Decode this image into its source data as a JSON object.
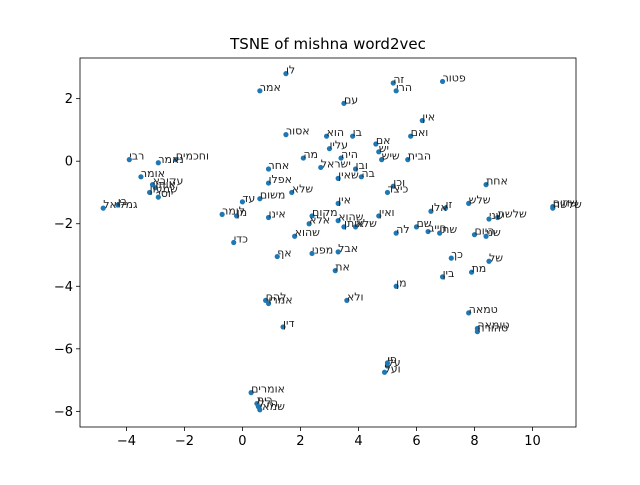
{
  "chart_data": {
    "type": "scatter",
    "title": "TSNE of mishna word2vec",
    "xlabel": "",
    "ylabel": "",
    "xlim": [
      -5.6,
      11.5
    ],
    "ylim": [
      -8.5,
      3.3
    ],
    "xticks": [
      -4,
      -2,
      0,
      2,
      4,
      6,
      8,
      10
    ],
    "yticks": [
      -8,
      -6,
      -4,
      -2,
      0,
      2
    ],
    "grid": false,
    "point_color": "#1f77b4",
    "points": [
      {
        "x": 1.5,
        "y": 2.8,
        "label": "לו"
      },
      {
        "x": 0.6,
        "y": 2.25,
        "label": "אמר"
      },
      {
        "x": 5.2,
        "y": 2.5,
        "label": "זה"
      },
      {
        "x": 5.3,
        "y": 2.25,
        "label": "הרי"
      },
      {
        "x": 6.9,
        "y": 2.55,
        "label": "פטור"
      },
      {
        "x": 3.5,
        "y": 1.85,
        "label": "עם"
      },
      {
        "x": 6.2,
        "y": 1.3,
        "label": "אין"
      },
      {
        "x": 1.5,
        "y": 0.85,
        "label": "אסור"
      },
      {
        "x": 2.9,
        "y": 0.8,
        "label": "הוא"
      },
      {
        "x": 3.8,
        "y": 0.8,
        "label": "בו"
      },
      {
        "x": 5.8,
        "y": 0.8,
        "label": "ואם"
      },
      {
        "x": 4.6,
        "y": 0.55,
        "label": "אם"
      },
      {
        "x": 3.0,
        "y": 0.4,
        "label": "עליו"
      },
      {
        "x": 2.1,
        "y": 0.1,
        "label": "מה"
      },
      {
        "x": 3.4,
        "y": 0.1,
        "label": "היה"
      },
      {
        "x": 4.7,
        "y": 0.3,
        "label": "יש"
      },
      {
        "x": 4.8,
        "y": 0.05,
        "label": "שיש"
      },
      {
        "x": 5.7,
        "y": 0.05,
        "label": "הבית"
      },
      {
        "x": -3.9,
        "y": 0.05,
        "label": "רבי"
      },
      {
        "x": -2.9,
        "y": -0.05,
        "label": "נאמר"
      },
      {
        "x": -2.3,
        "y": 0.05,
        "label": "וחכמים"
      },
      {
        "x": 0.9,
        "y": -0.25,
        "label": "אחר"
      },
      {
        "x": 2.7,
        "y": -0.2,
        "label": "ישראל"
      },
      {
        "x": 3.9,
        "y": -0.25,
        "label": "ובן"
      },
      {
        "x": 3.3,
        "y": -0.55,
        "label": "שאין"
      },
      {
        "x": 4.1,
        "y": -0.5,
        "label": "בה"
      },
      {
        "x": 0.9,
        "y": -0.7,
        "label": "אפלו"
      },
      {
        "x": -3.5,
        "y": -0.5,
        "label": "אומר"
      },
      {
        "x": -3.1,
        "y": -0.75,
        "label": "עקיבא"
      },
      {
        "x": -3.0,
        "y": -0.85,
        "label": "אותו"
      },
      {
        "x": -2.9,
        "y": -1.15,
        "label": "יוסי"
      },
      {
        "x": -3.2,
        "y": -1.0,
        "label": "שמעון"
      },
      {
        "x": -4.8,
        "y": -1.5,
        "label": "גמליאל"
      },
      {
        "x": -4.3,
        "y": -1.4,
        "label": "בן"
      },
      {
        "x": 0.6,
        "y": -1.2,
        "label": "משום"
      },
      {
        "x": 1.7,
        "y": -1.0,
        "label": "שלא"
      },
      {
        "x": 5.0,
        "y": -1.0,
        "label": "כיצד"
      },
      {
        "x": 5.2,
        "y": -0.8,
        "label": "וכן"
      },
      {
        "x": 8.4,
        "y": -0.75,
        "label": "אחת"
      },
      {
        "x": 10.7,
        "y": -1.45,
        "label": "שתים"
      },
      {
        "x": 10.7,
        "y": -1.5,
        "label": "שלשה"
      },
      {
        "x": 0.0,
        "y": -1.3,
        "label": "עד"
      },
      {
        "x": -0.7,
        "y": -1.7,
        "label": "לומר"
      },
      {
        "x": -0.2,
        "y": -1.75,
        "label": "מן"
      },
      {
        "x": 0.9,
        "y": -1.8,
        "label": "אינו"
      },
      {
        "x": 2.4,
        "y": -1.75,
        "label": "מקום"
      },
      {
        "x": 3.3,
        "y": -1.35,
        "label": "אין"
      },
      {
        "x": 3.3,
        "y": -1.9,
        "label": "שהוא"
      },
      {
        "x": 3.5,
        "y": -2.1,
        "label": "אותן"
      },
      {
        "x": 3.9,
        "y": -2.1,
        "label": "שלא"
      },
      {
        "x": 4.7,
        "y": -1.75,
        "label": "ואין"
      },
      {
        "x": 5.3,
        "y": -2.3,
        "label": "לה"
      },
      {
        "x": 6.0,
        "y": -2.1,
        "label": "שם"
      },
      {
        "x": 6.5,
        "y": -1.6,
        "label": "אלו"
      },
      {
        "x": 7.0,
        "y": -1.5,
        "label": "זו"
      },
      {
        "x": 6.4,
        "y": -2.25,
        "label": "חייב"
      },
      {
        "x": 6.8,
        "y": -2.3,
        "label": "שתי"
      },
      {
        "x": 7.8,
        "y": -1.35,
        "label": "שלש"
      },
      {
        "x": 8.5,
        "y": -1.85,
        "label": "שני"
      },
      {
        "x": 8.8,
        "y": -1.8,
        "label": "שלשת"
      },
      {
        "x": 8.0,
        "y": -2.35,
        "label": "היום"
      },
      {
        "x": 8.4,
        "y": -2.4,
        "label": "שני"
      },
      {
        "x": -0.3,
        "y": -2.6,
        "label": "כדי"
      },
      {
        "x": 1.8,
        "y": -2.4,
        "label": "שהוא"
      },
      {
        "x": 2.3,
        "y": -2.0,
        "label": "אלא"
      },
      {
        "x": 1.2,
        "y": -3.05,
        "label": "אף"
      },
      {
        "x": 2.4,
        "y": -2.95,
        "label": "מפני"
      },
      {
        "x": 3.3,
        "y": -2.9,
        "label": "אבל"
      },
      {
        "x": 7.2,
        "y": -3.1,
        "label": "כך"
      },
      {
        "x": 8.5,
        "y": -3.2,
        "label": "של"
      },
      {
        "x": 3.2,
        "y": -3.5,
        "label": "את"
      },
      {
        "x": 6.9,
        "y": -3.7,
        "label": "בין"
      },
      {
        "x": 7.9,
        "y": -3.55,
        "label": "מת"
      },
      {
        "x": 5.3,
        "y": -4.0,
        "label": "מן"
      },
      {
        "x": 0.8,
        "y": -4.45,
        "label": "להם"
      },
      {
        "x": 0.9,
        "y": -4.55,
        "label": "אמרו"
      },
      {
        "x": 3.6,
        "y": -4.45,
        "label": "ולא"
      },
      {
        "x": 1.4,
        "y": -5.3,
        "label": "דין"
      },
      {
        "x": 7.8,
        "y": -4.85,
        "label": "טמאה"
      },
      {
        "x": 8.1,
        "y": -5.35,
        "label": "טומאה"
      },
      {
        "x": 8.1,
        "y": -5.45,
        "label": "טהורה"
      },
      {
        "x": 5.0,
        "y": -6.45,
        "label": "פי"
      },
      {
        "x": 5.0,
        "y": -6.55,
        "label": "על"
      },
      {
        "x": 4.9,
        "y": -6.75,
        "label": "ועל"
      },
      {
        "x": 0.3,
        "y": -7.4,
        "label": "אומרים"
      },
      {
        "x": 0.5,
        "y": -7.75,
        "label": "בית"
      },
      {
        "x": 0.55,
        "y": -7.85,
        "label": "הלל"
      },
      {
        "x": 0.6,
        "y": -7.95,
        "label": "שמאי"
      }
    ]
  }
}
